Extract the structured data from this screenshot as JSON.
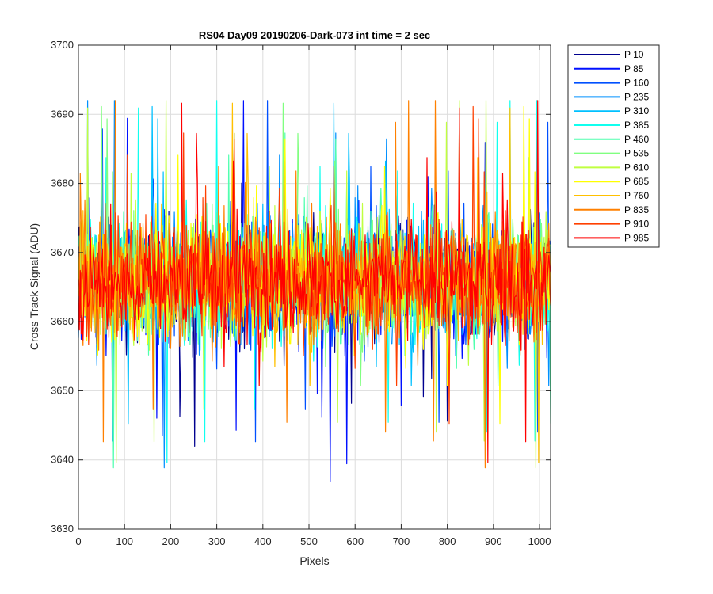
{
  "chart_data": {
    "type": "line",
    "title": "RS04 Day09 20190206-Dark-073 int time = 2 sec",
    "xlabel": "Pixels",
    "ylabel": "Cross Track Signal (ADU)",
    "xlim": [
      0,
      1024
    ],
    "ylim": [
      3630,
      3700
    ],
    "xticks": [
      0,
      100,
      200,
      300,
      400,
      500,
      600,
      700,
      800,
      900,
      1000
    ],
    "yticks": [
      3630,
      3640,
      3650,
      3660,
      3670,
      3680,
      3690,
      3700
    ],
    "grid": true,
    "legend_position": "outside-top-right",
    "noise_model": {
      "mean": 3666,
      "spread_typical": 8,
      "observed_min": 3636,
      "observed_max": 3692
    },
    "series": [
      {
        "name": "P 10",
        "color": "#00008f"
      },
      {
        "name": "P 85",
        "color": "#0010ff"
      },
      {
        "name": "P 160",
        "color": "#0050ff"
      },
      {
        "name": "P 235",
        "color": "#0090ff"
      },
      {
        "name": "P 310",
        "color": "#00c0ff"
      },
      {
        "name": "P 385",
        "color": "#10ffef"
      },
      {
        "name": "P 460",
        "color": "#50ffaf"
      },
      {
        "name": "P 535",
        "color": "#80ff80"
      },
      {
        "name": "P 610",
        "color": "#c0ff40"
      },
      {
        "name": "P 685",
        "color": "#ffff00"
      },
      {
        "name": "P 760",
        "color": "#ffc000"
      },
      {
        "name": "P 835",
        "color": "#ff8000"
      },
      {
        "name": "P 910",
        "color": "#ff4000"
      },
      {
        "name": "P 985",
        "color": "#ff0000"
      }
    ]
  }
}
